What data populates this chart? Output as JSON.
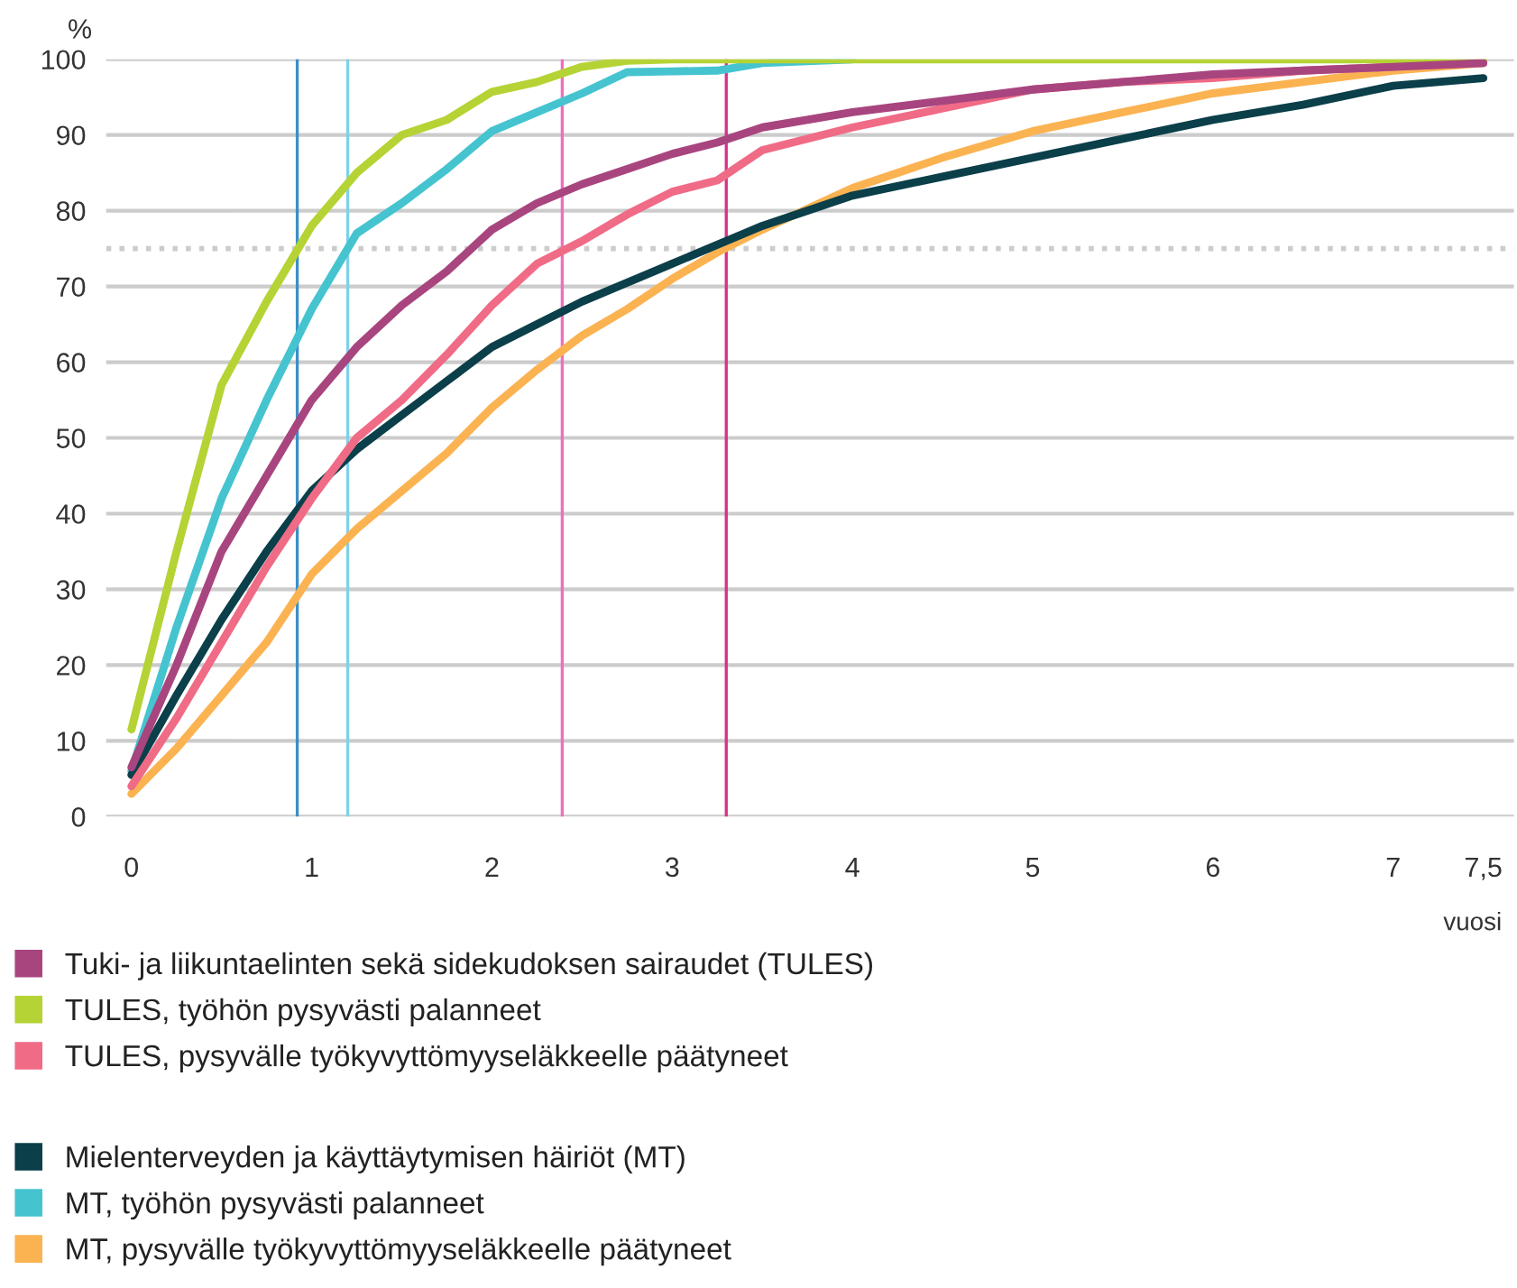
{
  "chart_data": {
    "type": "line",
    "xlabel": "vuosi",
    "ylabel": "%",
    "xlim": [
      -0.14,
      7.67
    ],
    "ylim": [
      0,
      100
    ],
    "xticks": [
      0,
      1,
      2,
      3,
      4,
      5,
      6,
      7,
      {
        "value": 7.5,
        "label": "7,5"
      }
    ],
    "yticks": [
      0,
      10,
      20,
      30,
      40,
      50,
      60,
      70,
      80,
      90,
      100
    ],
    "grid": "y",
    "legend": "bottom",
    "marker": "none",
    "line_style": "solid",
    "x": [
      0,
      0.25,
      0.5,
      0.75,
      1,
      1.25,
      1.5,
      1.75,
      2,
      2.25,
      2.5,
      2.75,
      3,
      3.25,
      3.5,
      4,
      4.5,
      5,
      5.5,
      6,
      6.5,
      7,
      7.5
    ],
    "series": [
      {
        "name": "Tuki- ja liikuntaelinten sekä sidekudoksen sairaudet (TULES)",
        "color": "#a8457f",
        "values": [
          6.5,
          20,
          35,
          45,
          55,
          62,
          67.5,
          72,
          77.5,
          81,
          83.5,
          85.5,
          87.5,
          89,
          91,
          93,
          94.5,
          96,
          97,
          98,
          98.5,
          99,
          99.5
        ]
      },
      {
        "name": "TULES, työhön pysyvästi palanneet",
        "color": "#b5d334",
        "values": [
          11.5,
          35,
          57,
          68,
          78,
          85,
          90,
          92,
          95.7,
          97,
          99,
          99.8,
          100,
          100,
          100,
          100,
          100,
          100,
          100,
          100,
          100,
          100,
          100
        ]
      },
      {
        "name": "TULES, pysyvälle työkyvyttömyyseläkkeelle päätyneet",
        "color": "#f06b86",
        "values": [
          4,
          13,
          23,
          33,
          42,
          50,
          55,
          61,
          67.5,
          73,
          76,
          79.5,
          82.5,
          84,
          88,
          91,
          93.5,
          96,
          97,
          97.5,
          98.5,
          99,
          99.5
        ]
      },
      {
        "name": "Mielenterveyden ja käyttäytymisen häiriöt (MT)",
        "color": "#0b3f4a",
        "values": [
          5.5,
          16,
          26,
          35,
          43,
          48.5,
          53,
          57.5,
          62,
          65,
          68,
          70.5,
          73,
          75.5,
          78,
          82,
          84.5,
          87,
          89.5,
          92,
          94,
          96.5,
          97.5
        ]
      },
      {
        "name": "MT, työhön pysyvästi palanneet",
        "color": "#45c4d0",
        "values": [
          6,
          25,
          42,
          55,
          67,
          77,
          81,
          85.5,
          90.5,
          93,
          95.5,
          98.3,
          98.4,
          98.5,
          99.5,
          100,
          null,
          null,
          null,
          null,
          null,
          null,
          null
        ]
      },
      {
        "name": "MT, pysyvälle työkyvyttömyyseläkkeelle päätyneet",
        "color": "#fbb352",
        "values": [
          3,
          9,
          16,
          23,
          32,
          38,
          43,
          48,
          54,
          59,
          63.5,
          67,
          71,
          74.5,
          77.5,
          83,
          87,
          90.5,
          93,
          95.5,
          97,
          98.5,
          99.5
        ]
      }
    ],
    "ref_lines": [
      {
        "axis": "y",
        "value": 75,
        "color": "#cccccc",
        "line_style": "dotted"
      },
      {
        "axis": "x",
        "value": 0.92,
        "color": "#3d8fc9"
      },
      {
        "axis": "x",
        "value": 1.2,
        "color": "#7fd0ea"
      },
      {
        "axis": "x",
        "value": 2.39,
        "color": "#f06ec0"
      },
      {
        "axis": "x",
        "value": 3.3,
        "color": "#d6338a"
      }
    ]
  }
}
